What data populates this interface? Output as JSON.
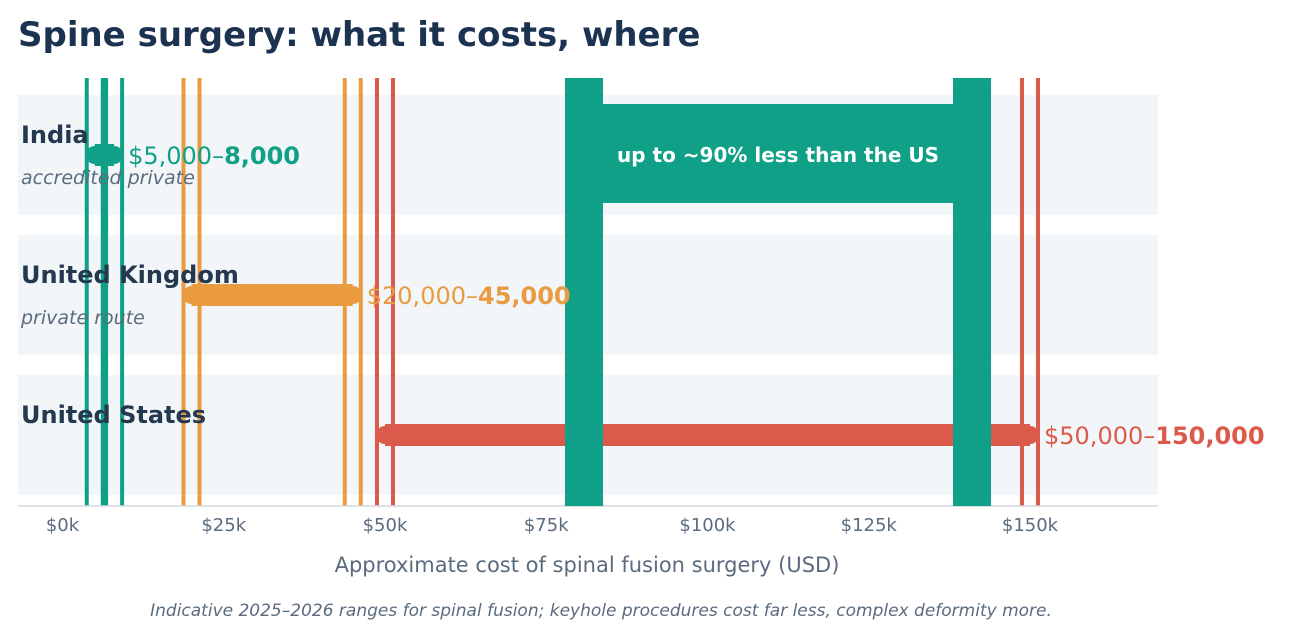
{
  "title": "Spine surgery: what it costs, where",
  "chart_data": {
    "type": "range-bar",
    "title": "Spine surgery: what it costs, where",
    "xlabel": "Approximate cost of spinal fusion surgery (USD)",
    "xlim": [
      -5000,
      170000
    ],
    "x_ticks": [
      0,
      25000,
      50000,
      75000,
      100000,
      125000,
      150000
    ],
    "x_tick_labels": [
      "$0k",
      "$25k",
      "$50k",
      "$75k",
      "$100k",
      "$125k",
      "$150k"
    ],
    "grid": false,
    "categories": [
      {
        "name": "India",
        "subtitle": "accredited private",
        "low": 5000,
        "high": 8000,
        "label_plain": "$5,000–",
        "label_bold": "8,000",
        "color": "#10a087"
      },
      {
        "name": "United Kingdom",
        "subtitle": "private route",
        "low": 20000,
        "high": 45000,
        "label_plain": "$20,000–",
        "label_bold": "45,000",
        "color": "#ea9b40"
      },
      {
        "name": "United States",
        "subtitle": "",
        "low": 50000,
        "high": 150000,
        "label_plain": "$50,000–",
        "label_bold": "150,000",
        "color": "#dc5a4b"
      }
    ],
    "annotation": {
      "text": "up to ~90% less than the US",
      "color": "#10a087"
    }
  },
  "footnote": "Indicative 2025–2026 ranges for spinal fusion; keyhole procedures cost far less, complex deformity more."
}
